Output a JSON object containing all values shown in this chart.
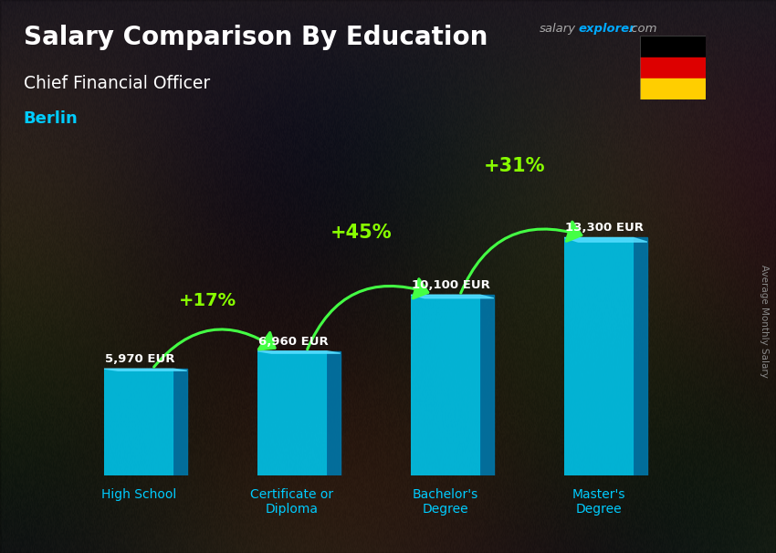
{
  "title": "Salary Comparison By Education",
  "subtitle": "Chief Financial Officer",
  "city": "Berlin",
  "ylabel": "Average Monthly Salary",
  "categories": [
    "High School",
    "Certificate or\nDiploma",
    "Bachelor's\nDegree",
    "Master's\nDegree"
  ],
  "values": [
    5970,
    6960,
    10100,
    13300
  ],
  "value_labels": [
    "5,970 EUR",
    "6,960 EUR",
    "10,100 EUR",
    "13,300 EUR"
  ],
  "pct_changes": [
    "+17%",
    "+45%",
    "+31%"
  ],
  "bar_face_color": "#00c8f0",
  "bar_side_color": "#0077aa",
  "bar_top_color": "#55ddff",
  "title_color": "#ffffff",
  "subtitle_color": "#ffffff",
  "city_color": "#00ccff",
  "value_label_color": "#ffffff",
  "pct_color": "#88ff00",
  "arrow_color": "#44ff44",
  "watermark_salary_color": "#aaaaaa",
  "watermark_explorer_color": "#00aaff",
  "watermark_com_color": "#aaaaaa",
  "axis_label_color": "#00ccff",
  "ylabel_color": "#888888",
  "bg_color": "#3a3535",
  "ylim": [
    0,
    17000
  ],
  "bar_width": 0.45,
  "bar_depth": 0.09
}
